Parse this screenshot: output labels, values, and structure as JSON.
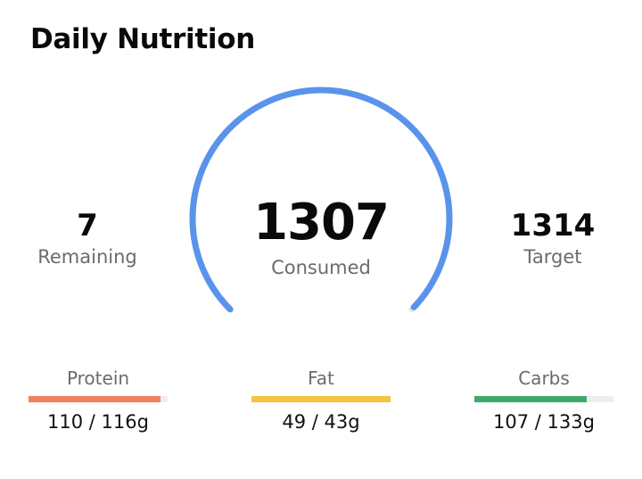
{
  "header": {
    "title": "Daily Nutrition"
  },
  "summary": {
    "remaining": {
      "value": "7",
      "label": "Remaining"
    },
    "consumed": {
      "value": "1307",
      "label": "Consumed"
    },
    "target": {
      "value": "1314",
      "label": "Target"
    },
    "progress_fraction": 0.995
  },
  "macros": [
    {
      "name": "Protein",
      "value": "110 / 116g",
      "consumed": 110,
      "target": 116,
      "color": "#f27f5e"
    },
    {
      "name": "Fat",
      "value": "49 / 43g",
      "consumed": 49,
      "target": 43,
      "color": "#f6c244"
    },
    {
      "name": "Carbs",
      "value": "107 / 133g",
      "consumed": 107,
      "target": 133,
      "color": "#3daa6a"
    }
  ],
  "colors": {
    "gauge": "#5a93ec",
    "gauge_track": "#e8e8e8"
  }
}
